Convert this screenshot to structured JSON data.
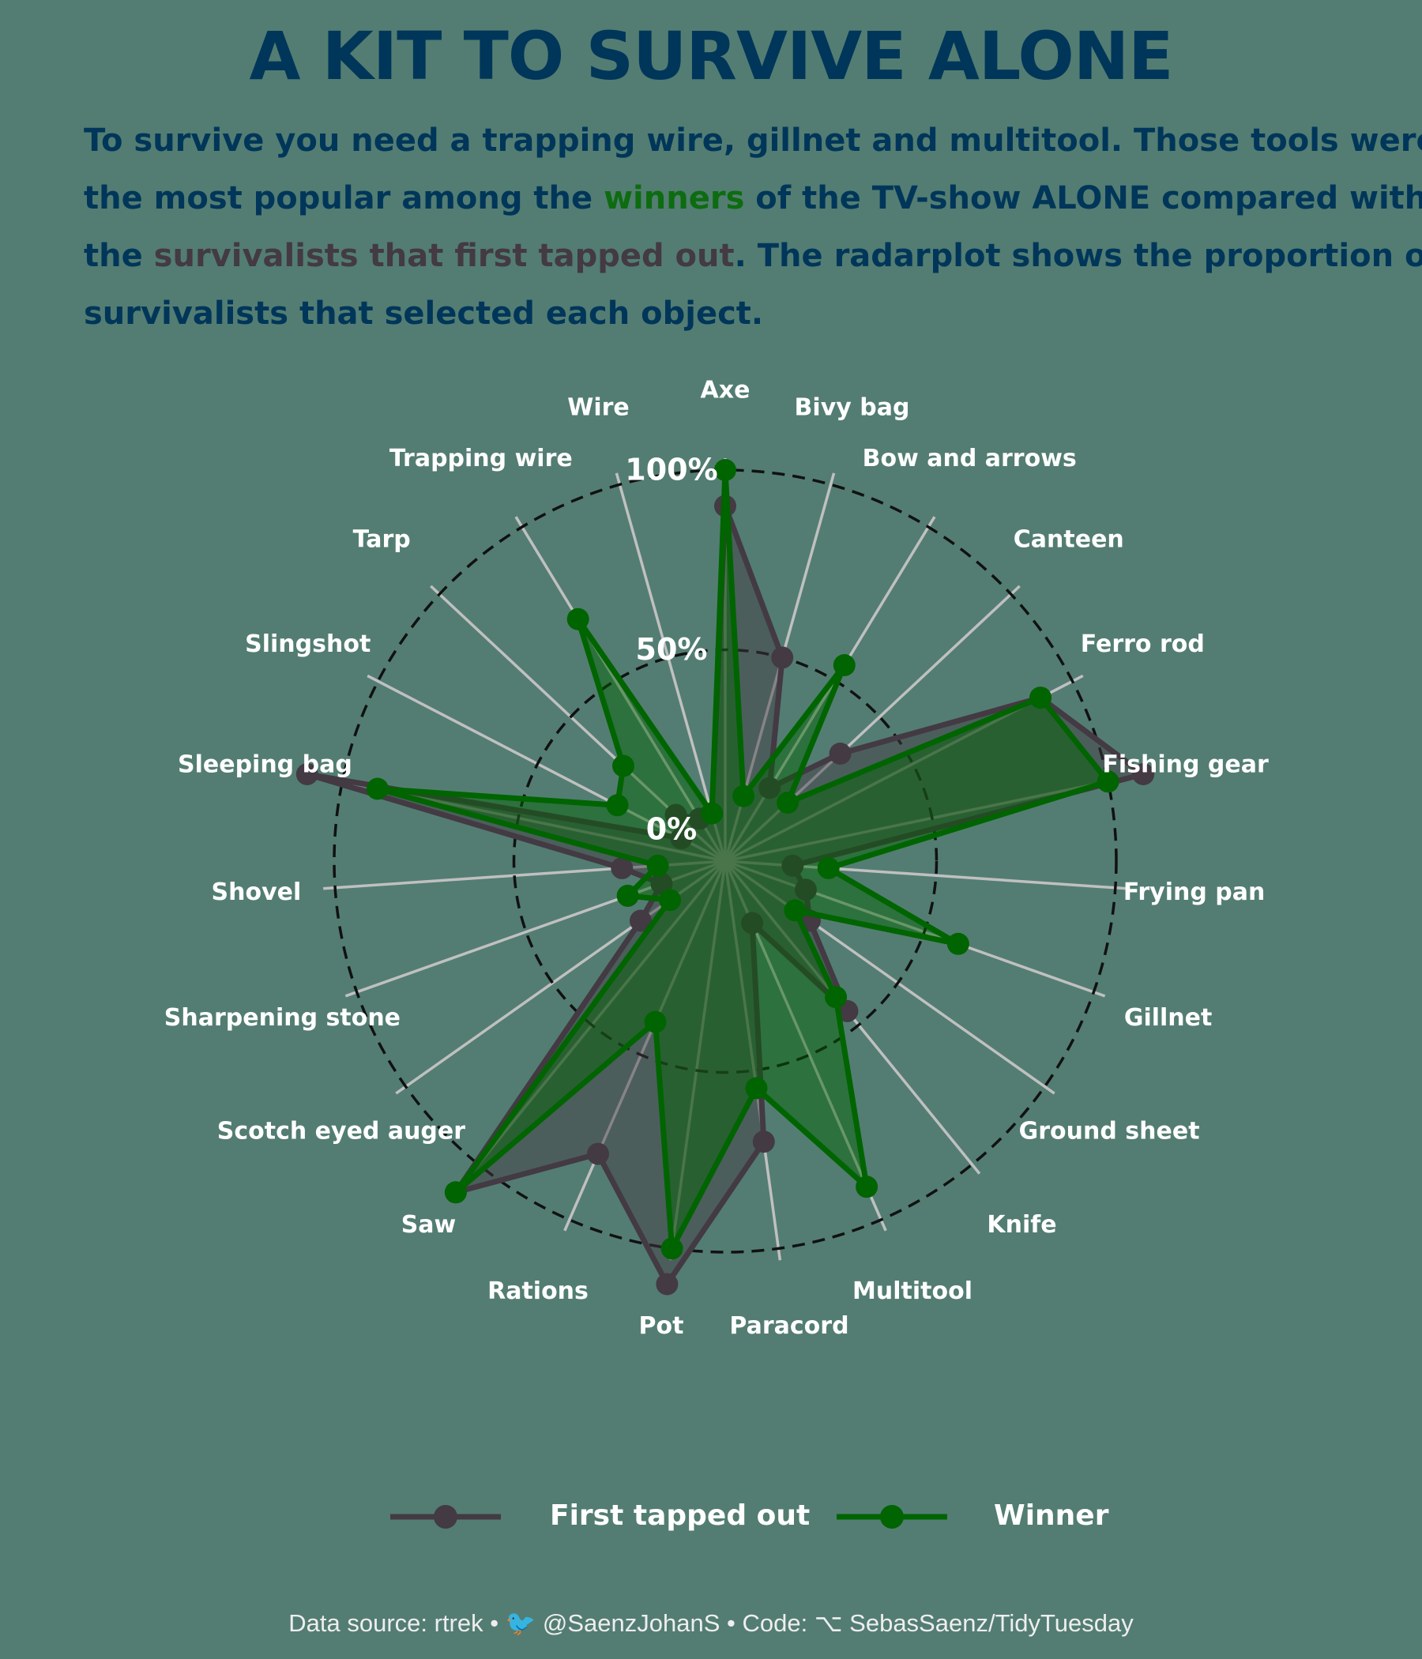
{
  "title": "A KIT TO SURVIVE ALONE",
  "subtitle": {
    "line1": "To survive you need a trapping wire, gillnet and multitool. Those tools were",
    "line2_a": "the most popular among the ",
    "line2_winners": "winners",
    "line2_b": " of the TV-show ALONE compared with",
    "line3_a": "the ",
    "line3_tapped": "survivalists that first tapped out",
    "line3_b": ". The radarplot shows the proportion of",
    "line4": "survivalists that selected each object."
  },
  "colors": {
    "background": "#537d72",
    "title": "#00365a",
    "first_tapped_out": "#433a43",
    "winner": "#006400",
    "spoke": "#c0c0c0",
    "ring": "#111111"
  },
  "chart_data": {
    "type": "radar",
    "title": "",
    "categories": [
      "Axe",
      "Bivy bag",
      "Bow and arrows",
      "Canteen",
      "Ferro rod",
      "Fishing gear",
      "Frying pan",
      "Gillnet",
      "Ground sheet",
      "Knife",
      "Multitool",
      "Paracord",
      "Pot",
      "Rations",
      "Saw",
      "Scotch eyed auger",
      "Sharpening stone",
      "Shovel",
      "Sleeping bag",
      "Slingshot",
      "Tarp",
      "Trapping wire",
      "Wire"
    ],
    "radial_ticks": [
      "0%",
      "50%",
      "100%"
    ],
    "rlim": [
      0,
      1
    ],
    "grid": "dashed rings at 50% and 100%",
    "legend_position": "bottom",
    "series": [
      {
        "name": "First tapped out",
        "color": "#433a43",
        "values": [
          0.9,
          0.5,
          0.15,
          0.35,
          0.9,
          1.1,
          0.1,
          0.15,
          0.2,
          0.45,
          0.1,
          0.7,
          1.1,
          0.8,
          1.1,
          0.2,
          0.1,
          0.2,
          1.1,
          0.05,
          0.1,
          0.05,
          0.05
        ]
      },
      {
        "name": "Winner",
        "color": "#006400",
        "values": [
          1.0,
          0.1,
          0.55,
          0.15,
          0.9,
          1.0,
          0.2,
          0.6,
          0.15,
          0.4,
          0.9,
          0.55,
          1.0,
          0.4,
          1.1,
          0.1,
          0.2,
          0.1,
          0.9,
          0.25,
          0.3,
          0.7,
          0.05
        ]
      }
    ]
  },
  "legend": {
    "first_tapped_out": "First tapped out",
    "winner": "Winner"
  },
  "caption": "Data source: rtrek • 🐦 @SaenzJohanS • Code: ⌥ SebasSaenz/TidyTuesday"
}
